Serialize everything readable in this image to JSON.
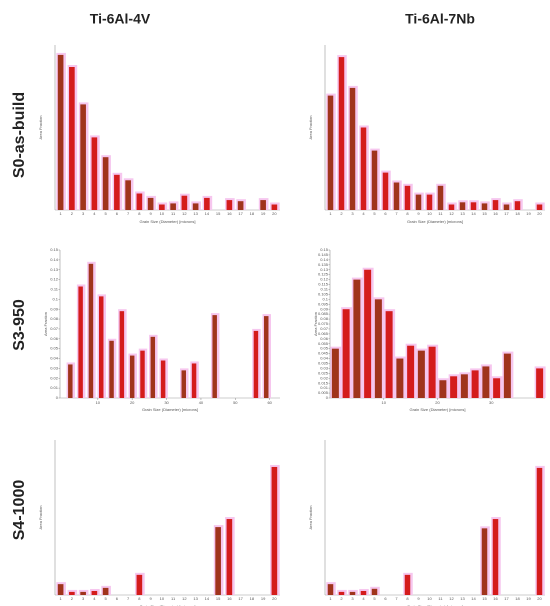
{
  "figure": {
    "columns": [
      "Ti-6Al-4V",
      "Ti-6Al-7Nb"
    ],
    "rows": [
      "S0-as-build",
      "S3-950",
      "S4-1000"
    ]
  },
  "chart_data": [
    {
      "type": "bar",
      "y_label": "Area Fraction",
      "x_label": "Grain Size (Diameter) [microns]",
      "colors": [
        "#a0341c",
        "#d41c1c"
      ],
      "ylim": [
        0,
        0.15
      ],
      "categories": [
        "1",
        "2",
        "3",
        "4",
        "5",
        "6",
        "7",
        "8",
        "9",
        "10",
        "11",
        "12",
        "13",
        "14",
        "15",
        "16",
        "17",
        "18",
        "19",
        "20"
      ],
      "values": [
        0.141,
        0.13,
        0.096,
        0.066,
        0.048,
        0.032,
        0.027,
        0.015,
        0.011,
        0.005,
        0.006,
        0.013,
        0.006,
        0.011,
        0,
        0.009,
        0.008,
        0,
        0.009,
        0.005
      ]
    },
    {
      "type": "bar",
      "y_label": "Area Fraction",
      "x_label": "Grain Size (Diameter) [microns]",
      "colors": [
        "#a0341c",
        "#d41c1c"
      ],
      "ylim": [
        0,
        0.15
      ],
      "categories": [
        "1",
        "2",
        "3",
        "4",
        "5",
        "6",
        "7",
        "8",
        "9",
        "10",
        "11",
        "12",
        "13",
        "14",
        "15",
        "16",
        "17",
        "18",
        "19",
        "20"
      ],
      "values": [
        0.104,
        0.139,
        0.111,
        0.075,
        0.054,
        0.034,
        0.025,
        0.022,
        0.014,
        0.014,
        0.022,
        0.005,
        0.007,
        0.007,
        0.006,
        0.009,
        0.005,
        0.008,
        0,
        0.005
      ]
    },
    {
      "type": "bar",
      "y_label": "Area Fraction",
      "x_label": "Grain Size (Diameter) [microns]",
      "colors": [
        "#a0341c",
        "#d41c1c"
      ],
      "ylim": [
        0,
        0.15
      ],
      "xlim": [
        -1,
        63
      ],
      "yticks": [
        0,
        0.01,
        0.02,
        0.03,
        0.04,
        0.05,
        0.06,
        0.07,
        0.08,
        0.09,
        0.1,
        0.11,
        0.12,
        0.13,
        0.14,
        0.15
      ],
      "xticks": [
        10,
        20,
        30,
        40,
        50,
        60
      ],
      "x": [
        2,
        5,
        8,
        11,
        14,
        17,
        20,
        23,
        26,
        29,
        35,
        38,
        44,
        56,
        59
      ],
      "values": [
        0.034,
        0.113,
        0.136,
        0.103,
        0.058,
        0.088,
        0.043,
        0.048,
        0.062,
        0.038,
        0.028,
        0.035,
        0.084,
        0.068,
        0.083
      ]
    },
    {
      "type": "bar",
      "y_label": "Area Fraction",
      "x_label": "Grain Size (Diameter) [microns]",
      "colors": [
        "#a0341c",
        "#d41c1c"
      ],
      "ylim": [
        0,
        0.15
      ],
      "xlim": [
        0,
        40
      ],
      "yticks": [
        0,
        0.005,
        0.01,
        0.015,
        0.02,
        0.025,
        0.03,
        0.035,
        0.04,
        0.045,
        0.05,
        0.055,
        0.06,
        0.065,
        0.07,
        0.075,
        0.08,
        0.085,
        0.09,
        0.095,
        0.1,
        0.105,
        0.11,
        0.115,
        0.12,
        0.125,
        0.13,
        0.135,
        0.14,
        0.145,
        0.15
      ],
      "xticks": [
        10,
        20,
        30
      ],
      "x": [
        1,
        3,
        5,
        7,
        9,
        11,
        13,
        15,
        17,
        19,
        21,
        23,
        25,
        27,
        29,
        31,
        33,
        39
      ],
      "values": [
        0.05,
        0.09,
        0.12,
        0.13,
        0.1,
        0.088,
        0.04,
        0.053,
        0.048,
        0.052,
        0.018,
        0.022,
        0.024,
        0.028,
        0.032,
        0.02,
        0.045,
        0.03
      ]
    },
    {
      "type": "bar",
      "y_label": "Area Fraction",
      "x_label": "Grain Size (Diameter) [microns]",
      "colors": [
        "#a0341c",
        "#d41c1c"
      ],
      "ylim": [
        0,
        0.5
      ],
      "categories": [
        "1",
        "2",
        "3",
        "4",
        "5",
        "6",
        "7",
        "8",
        "9",
        "10",
        "11",
        "12",
        "13",
        "14",
        "15",
        "16",
        "17",
        "18",
        "19",
        "20"
      ],
      "values": [
        0.035,
        0.01,
        0.01,
        0.013,
        0.023,
        0,
        0,
        0.065,
        0,
        0,
        0,
        0,
        0,
        0,
        0.219,
        0.245,
        0,
        0,
        0,
        0.413
      ]
    },
    {
      "type": "bar",
      "y_label": "Area Fraction",
      "x_label": "Grain Size (Diameter) [microns]",
      "colors": [
        "#a0341c",
        "#d41c1c"
      ],
      "ylim": [
        0,
        0.5
      ],
      "categories": [
        "1",
        "2",
        "3",
        "4",
        "5",
        "6",
        "7",
        "8",
        "9",
        "10",
        "11",
        "12",
        "13",
        "14",
        "15",
        "16",
        "17",
        "18",
        "19",
        "20"
      ],
      "values": [
        0.035,
        0.01,
        0.01,
        0.013,
        0.02,
        0,
        0,
        0.065,
        0,
        0,
        0,
        0,
        0,
        0,
        0.215,
        0.245,
        0,
        0,
        0,
        0.41
      ]
    }
  ]
}
